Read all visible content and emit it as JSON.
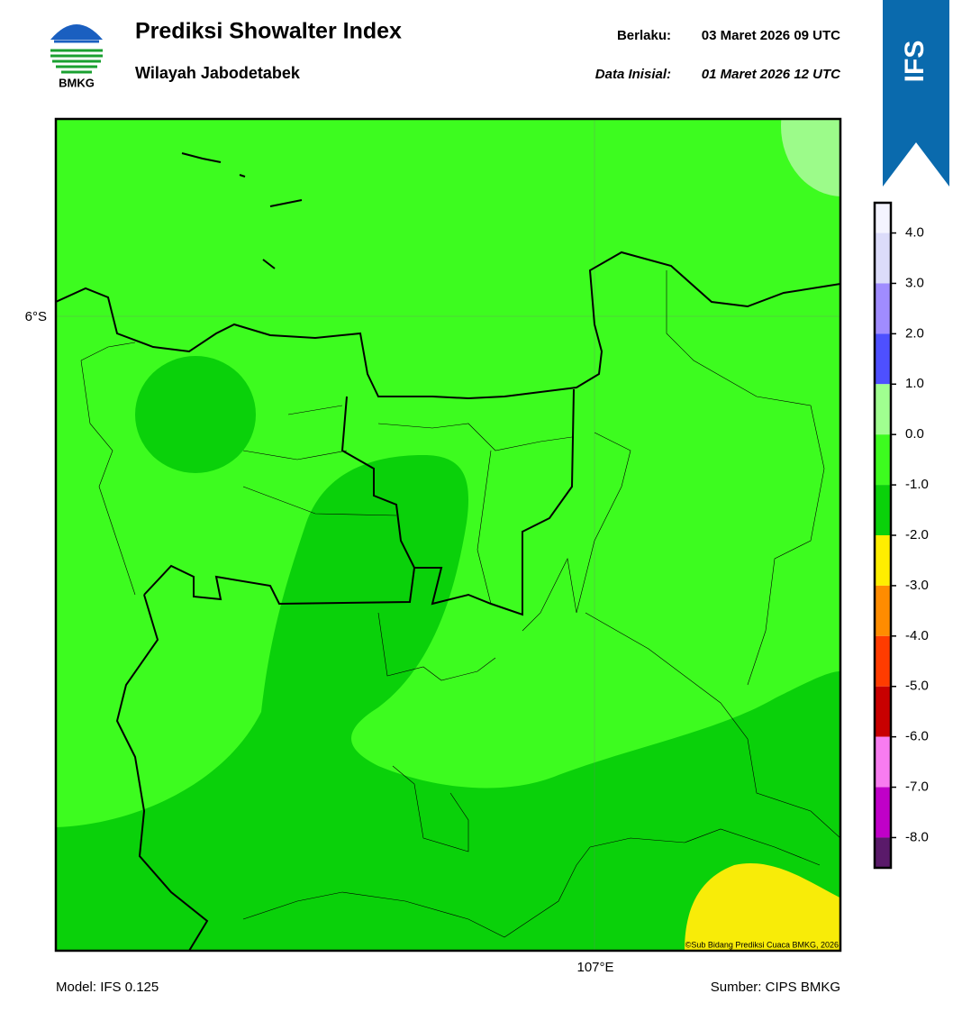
{
  "header": {
    "title": "Prediksi Showalter Index",
    "subtitle": "Wilayah Jabodetabek",
    "valid_label": "Berlaku:",
    "valid_time": "03 Maret 2026 09 UTC",
    "init_label": "Data Inisial:",
    "init_time": "01 Maret 2026 12 UTC",
    "logo_text": "BMKG"
  },
  "badge": "IFS",
  "map": {
    "lat_label": "6°S",
    "lon_label": "107°E",
    "credit": "©Sub Bidang Prediksi Cuaca BMKG, 2026"
  },
  "colorbar": {
    "lim": [
      -8.6,
      4.6
    ],
    "ticks": [
      {
        "value": 4,
        "label": "4.0"
      },
      {
        "value": 3,
        "label": "3.0"
      },
      {
        "value": 2,
        "label": "2.0"
      },
      {
        "value": 1,
        "label": "1.0"
      },
      {
        "value": 0,
        "label": "0.0"
      },
      {
        "value": -1,
        "label": "-1.0"
      },
      {
        "value": -2,
        "label": "-2.0"
      },
      {
        "value": -3,
        "label": "-3.0"
      },
      {
        "value": -4,
        "label": "-4.0"
      },
      {
        "value": -5,
        "label": "-5.0"
      },
      {
        "value": -6,
        "label": "-6.0"
      },
      {
        "value": -7,
        "label": "-7.0"
      },
      {
        "value": -8,
        "label": "-8.0"
      }
    ],
    "colors": [
      "#f4f4ff",
      "#dcdcfa",
      "#a08cff",
      "#4e50ff",
      "#a0ff90",
      "#3dfc1f",
      "#0ad10a",
      "#ffee00",
      "#ff8c00",
      "#ff3c00",
      "#c80000",
      "#f87cf0",
      "#c000c8",
      "#5a1a6a"
    ]
  },
  "footer": {
    "model": "Model: IFS 0.125",
    "source": "Sumber: CIPS BMKG"
  }
}
